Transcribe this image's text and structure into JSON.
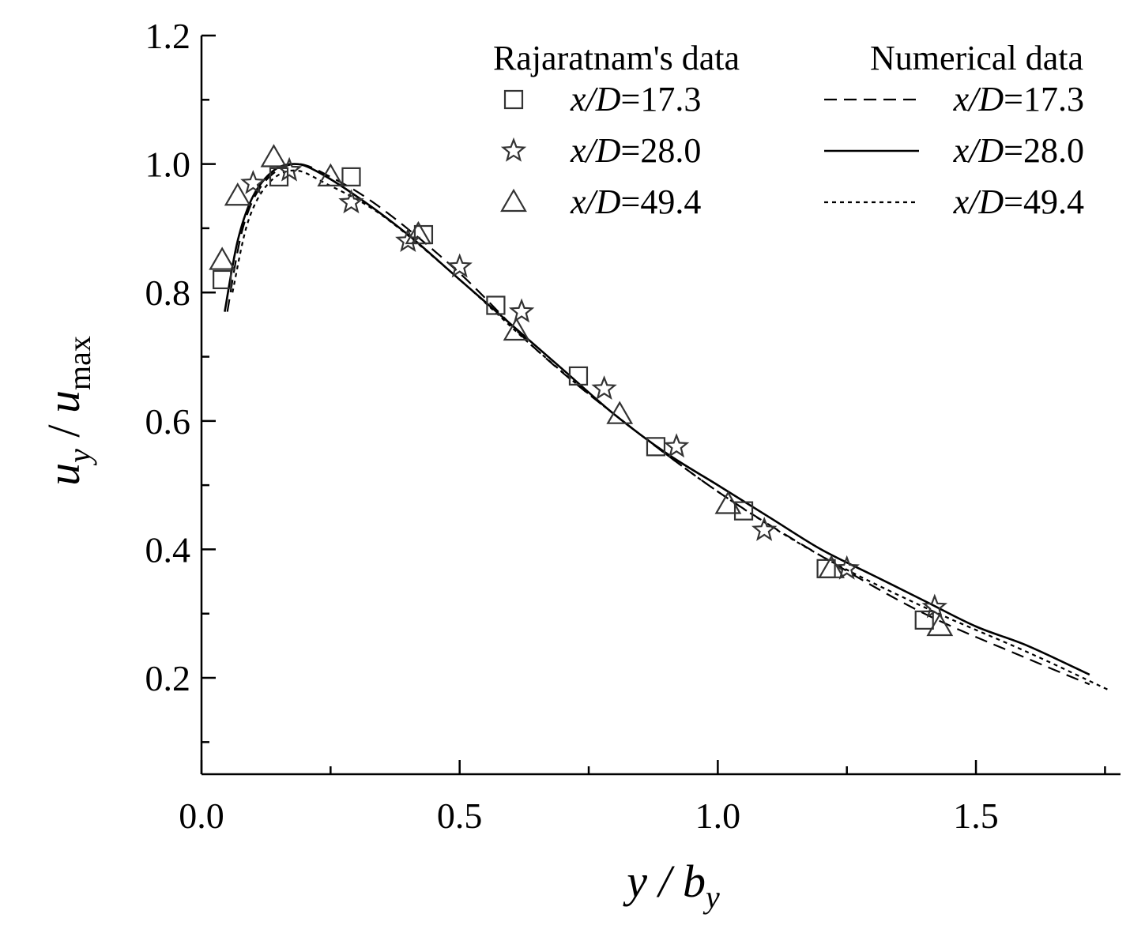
{
  "chart_data": {
    "type": "scatter",
    "title": "",
    "xlabel": {
      "main": "y / b",
      "sub": "y"
    },
    "ylabel": {
      "main": "u",
      "sub": "y",
      "sep": " / ",
      "main2": "u",
      "sub2": "max"
    },
    "xlim": [
      0.0,
      1.78
    ],
    "ylim": [
      0.05,
      1.2
    ],
    "x_ticks": [
      "0.0",
      "0.5",
      "1.0",
      "1.5"
    ],
    "x_tick_values": [
      0.0,
      0.5,
      1.0,
      1.5
    ],
    "x_minor_values": [
      0.25,
      0.75,
      1.25,
      1.75
    ],
    "y_ticks": [
      "0.2",
      "0.4",
      "0.6",
      "0.8",
      "1.0",
      "1.2"
    ],
    "y_tick_values": [
      0.2,
      0.4,
      0.6,
      0.8,
      1.0,
      1.2
    ],
    "y_minor_values": [
      0.1,
      0.3,
      0.5,
      0.7,
      0.9,
      1.1
    ],
    "grid": false,
    "legend": {
      "placement": "top-right",
      "left_header": "Rajaratnam's data",
      "right_header": "Numerical data",
      "label_var": "x/D",
      "label_eq": "="
    },
    "experimental": [
      {
        "name": "x/D=17.3",
        "value": "17.3",
        "marker": "square",
        "x": [
          0.04,
          0.15,
          0.29,
          0.43,
          0.57,
          0.73,
          0.88,
          1.05,
          1.21,
          1.4
        ],
        "y": [
          0.82,
          0.98,
          0.98,
          0.89,
          0.78,
          0.67,
          0.56,
          0.46,
          0.37,
          0.29
        ]
      },
      {
        "name": "x/D=28.0",
        "value": "28.0",
        "marker": "star",
        "x": [
          0.1,
          0.17,
          0.29,
          0.4,
          0.5,
          0.62,
          0.78,
          0.92,
          1.09,
          1.25,
          1.42
        ],
        "y": [
          0.97,
          0.99,
          0.94,
          0.88,
          0.84,
          0.77,
          0.65,
          0.56,
          0.43,
          0.37,
          0.31
        ]
      },
      {
        "name": "x/D=49.4",
        "value": "49.4",
        "marker": "triangle",
        "x": [
          0.04,
          0.07,
          0.14,
          0.25,
          0.42,
          0.61,
          0.81,
          1.02,
          1.22,
          1.43
        ],
        "y": [
          0.85,
          0.95,
          1.01,
          0.98,
          0.89,
          0.74,
          0.61,
          0.47,
          0.37,
          0.28
        ]
      }
    ],
    "numerical": [
      {
        "name": "x/D=17.3",
        "value": "17.3",
        "dash": "dashed",
        "x": [
          0.05,
          0.08,
          0.12,
          0.18,
          0.25,
          0.35,
          0.5,
          0.65,
          0.8,
          1.0,
          1.2,
          1.4,
          1.6,
          1.72
        ],
        "y": [
          0.77,
          0.9,
          0.97,
          1.0,
          0.98,
          0.93,
          0.83,
          0.71,
          0.61,
          0.49,
          0.39,
          0.3,
          0.23,
          0.19
        ]
      },
      {
        "name": "x/D=28.0",
        "value": "28.0",
        "dash": "solid",
        "x": [
          0.045,
          0.07,
          0.1,
          0.14,
          0.18,
          0.22,
          0.3,
          0.4,
          0.5,
          0.6,
          0.7,
          0.8,
          0.9,
          1.0,
          1.1,
          1.2,
          1.3,
          1.4,
          1.5,
          1.6,
          1.72
        ],
        "y": [
          0.77,
          0.88,
          0.95,
          0.99,
          1.0,
          0.99,
          0.95,
          0.89,
          0.82,
          0.75,
          0.68,
          0.61,
          0.55,
          0.5,
          0.45,
          0.4,
          0.36,
          0.32,
          0.28,
          0.25,
          0.205
        ]
      },
      {
        "name": "x/D=49.4",
        "value": "49.4",
        "dash": "dotted",
        "x": [
          0.06,
          0.09,
          0.13,
          0.18,
          0.24,
          0.35,
          0.5,
          0.65,
          0.8,
          1.0,
          1.2,
          1.4,
          1.6,
          1.76
        ],
        "y": [
          0.8,
          0.91,
          0.97,
          0.99,
          0.97,
          0.92,
          0.82,
          0.71,
          0.61,
          0.49,
          0.39,
          0.31,
          0.24,
          0.18
        ]
      }
    ]
  }
}
